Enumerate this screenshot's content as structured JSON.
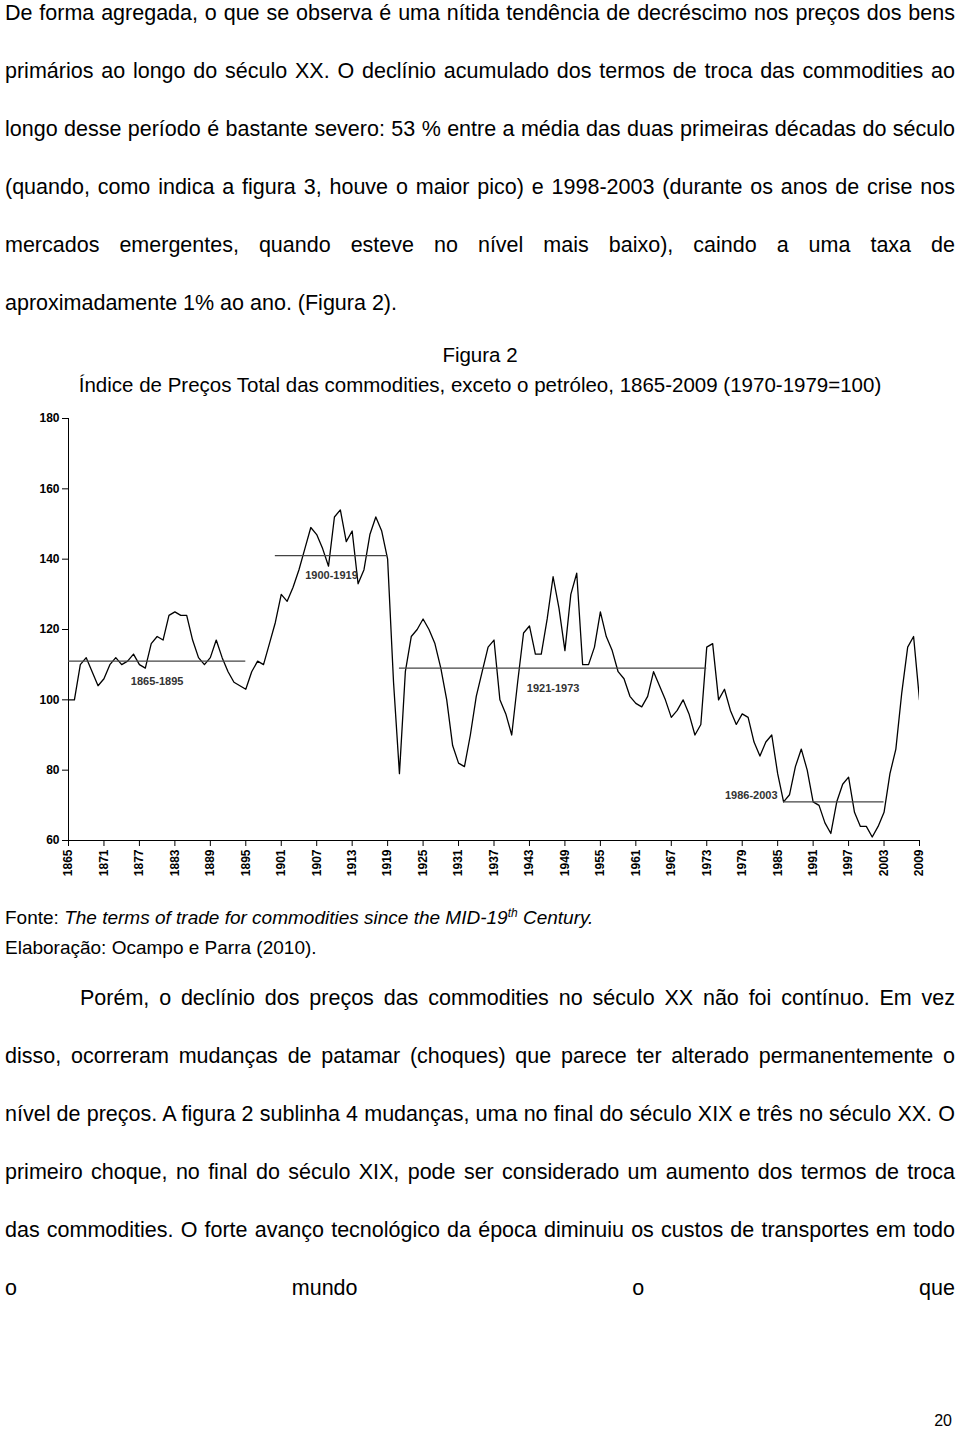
{
  "paragraphs_before": [
    "De forma agregada, o que se observa é uma nítida tendência de decréscimo nos preços dos bens primários ao longo do século XX. O declínio acumulado dos termos de troca das commodities ao longo desse período é bastante severo: 53 % entre a média das duas primeiras décadas do século (quando, como indica a figura 3, houve o maior pico) e 1998-2003 (durante os anos de crise nos mercados emergentes, quando esteve no nível mais baixo), caindo a uma taxa de aproximadamente 1% ao ano. (Figura 2)."
  ],
  "figure": {
    "label": "Figura 2",
    "title": "Índice de Preços Total das commodities, exceto o petróleo, 1865-2009 (1970-1979=100)",
    "source": [
      {
        "text": "Fonte: "
      },
      {
        "text": "The terms of trade for commodities since the MID-19",
        "style": "italic"
      },
      {
        "text": "th",
        "style": "sup"
      },
      {
        "text": " Century.",
        "style": "italic"
      }
    ],
    "credit": "Elaboração: Ocampo e Parra (2010)."
  },
  "chart_data": {
    "type": "line",
    "color": "#000000",
    "grid": false,
    "x": [
      1865,
      1866,
      1867,
      1868,
      1869,
      1870,
      1871,
      1872,
      1873,
      1874,
      1875,
      1876,
      1877,
      1878,
      1879,
      1880,
      1881,
      1882,
      1883,
      1884,
      1885,
      1886,
      1887,
      1888,
      1889,
      1890,
      1891,
      1892,
      1893,
      1894,
      1895,
      1896,
      1897,
      1898,
      1899,
      1900,
      1901,
      1902,
      1903,
      1904,
      1905,
      1906,
      1907,
      1908,
      1909,
      1910,
      1911,
      1912,
      1913,
      1914,
      1915,
      1916,
      1917,
      1918,
      1919,
      1920,
      1921,
      1922,
      1923,
      1924,
      1925,
      1926,
      1927,
      1928,
      1929,
      1930,
      1931,
      1932,
      1933,
      1934,
      1935,
      1936,
      1937,
      1938,
      1939,
      1940,
      1941,
      1942,
      1943,
      1944,
      1945,
      1946,
      1947,
      1948,
      1949,
      1950,
      1951,
      1952,
      1953,
      1954,
      1955,
      1956,
      1957,
      1958,
      1959,
      1960,
      1961,
      1962,
      1963,
      1964,
      1965,
      1966,
      1967,
      1968,
      1969,
      1970,
      1971,
      1972,
      1973,
      1974,
      1975,
      1976,
      1977,
      1978,
      1979,
      1980,
      1981,
      1982,
      1983,
      1984,
      1985,
      1986,
      1987,
      1988,
      1989,
      1990,
      1991,
      1992,
      1993,
      1994,
      1995,
      1996,
      1997,
      1998,
      1999,
      2000,
      2001,
      2002,
      2003,
      2004,
      2005,
      2006,
      2007,
      2008,
      2009
    ],
    "values": [
      100,
      100,
      110,
      112,
      108,
      104,
      106,
      110,
      112,
      110,
      111,
      113,
      110,
      109,
      116,
      118,
      117,
      124,
      125,
      124,
      124,
      117,
      112,
      110,
      112,
      117,
      112,
      108,
      105,
      104,
      103,
      108,
      111,
      110,
      116,
      122,
      130,
      128,
      132,
      137,
      143,
      149,
      147,
      143,
      138,
      152,
      154,
      145,
      148,
      133,
      137,
      147,
      152,
      148,
      140,
      105,
      79,
      108,
      118,
      120,
      123,
      120,
      116,
      109,
      100,
      87,
      82,
      81,
      90,
      101,
      108,
      115,
      117,
      100,
      96,
      90,
      105,
      119,
      121,
      113,
      113,
      123,
      135,
      126,
      114,
      130,
      136,
      110,
      110,
      115,
      125,
      118,
      114,
      108,
      106,
      101,
      99,
      98,
      101,
      108,
      104,
      100,
      95,
      97,
      100,
      96,
      90,
      93,
      115,
      116,
      100,
      103,
      97,
      93,
      96,
      95,
      88,
      84,
      88,
      90,
      79,
      71,
      73,
      81,
      86,
      80,
      71,
      70,
      65,
      62,
      71,
      76,
      78,
      68,
      64,
      64,
      61,
      64,
      68,
      79,
      86,
      102,
      115,
      118,
      100
    ],
    "xlim": [
      1865,
      2009
    ],
    "xticks": [
      1865,
      1871,
      1877,
      1883,
      1889,
      1895,
      1901,
      1907,
      1913,
      1919,
      1925,
      1931,
      1937,
      1943,
      1949,
      1955,
      1961,
      1967,
      1973,
      1979,
      1985,
      1991,
      1997,
      2003,
      2009
    ],
    "ylim": [
      60,
      180
    ],
    "yticks": [
      60,
      80,
      100,
      120,
      140,
      160,
      180
    ],
    "annotations": [
      {
        "label": "1865-1895",
        "x0": 1865,
        "x1": 1895,
        "value": 111
      },
      {
        "label": "1900-1919",
        "x0": 1900,
        "x1": 1919,
        "value": 141
      },
      {
        "label": "1921-1973",
        "x0": 1921,
        "x1": 1973,
        "value": 109
      },
      {
        "label": "1986-2003",
        "x0": 1986,
        "x1": 2003,
        "value": 71
      }
    ]
  },
  "paragraphs_after": [
    "Porém, o declínio dos preços das commodities no século XX não foi contínuo. Em vez disso, ocorreram mudanças de patamar (choques) que parece ter alterado permanentemente o nível de preços. A figura 2 sublinha 4 mudanças, uma no final do século XIX e três no século XX. O primeiro choque, no final do século XIX, pode ser considerado um aumento dos termos de troca das commodities. O forte avanço tecnológico da época diminuiu os custos de transportes em todo o mundo o que"
  ],
  "page_number": "20"
}
